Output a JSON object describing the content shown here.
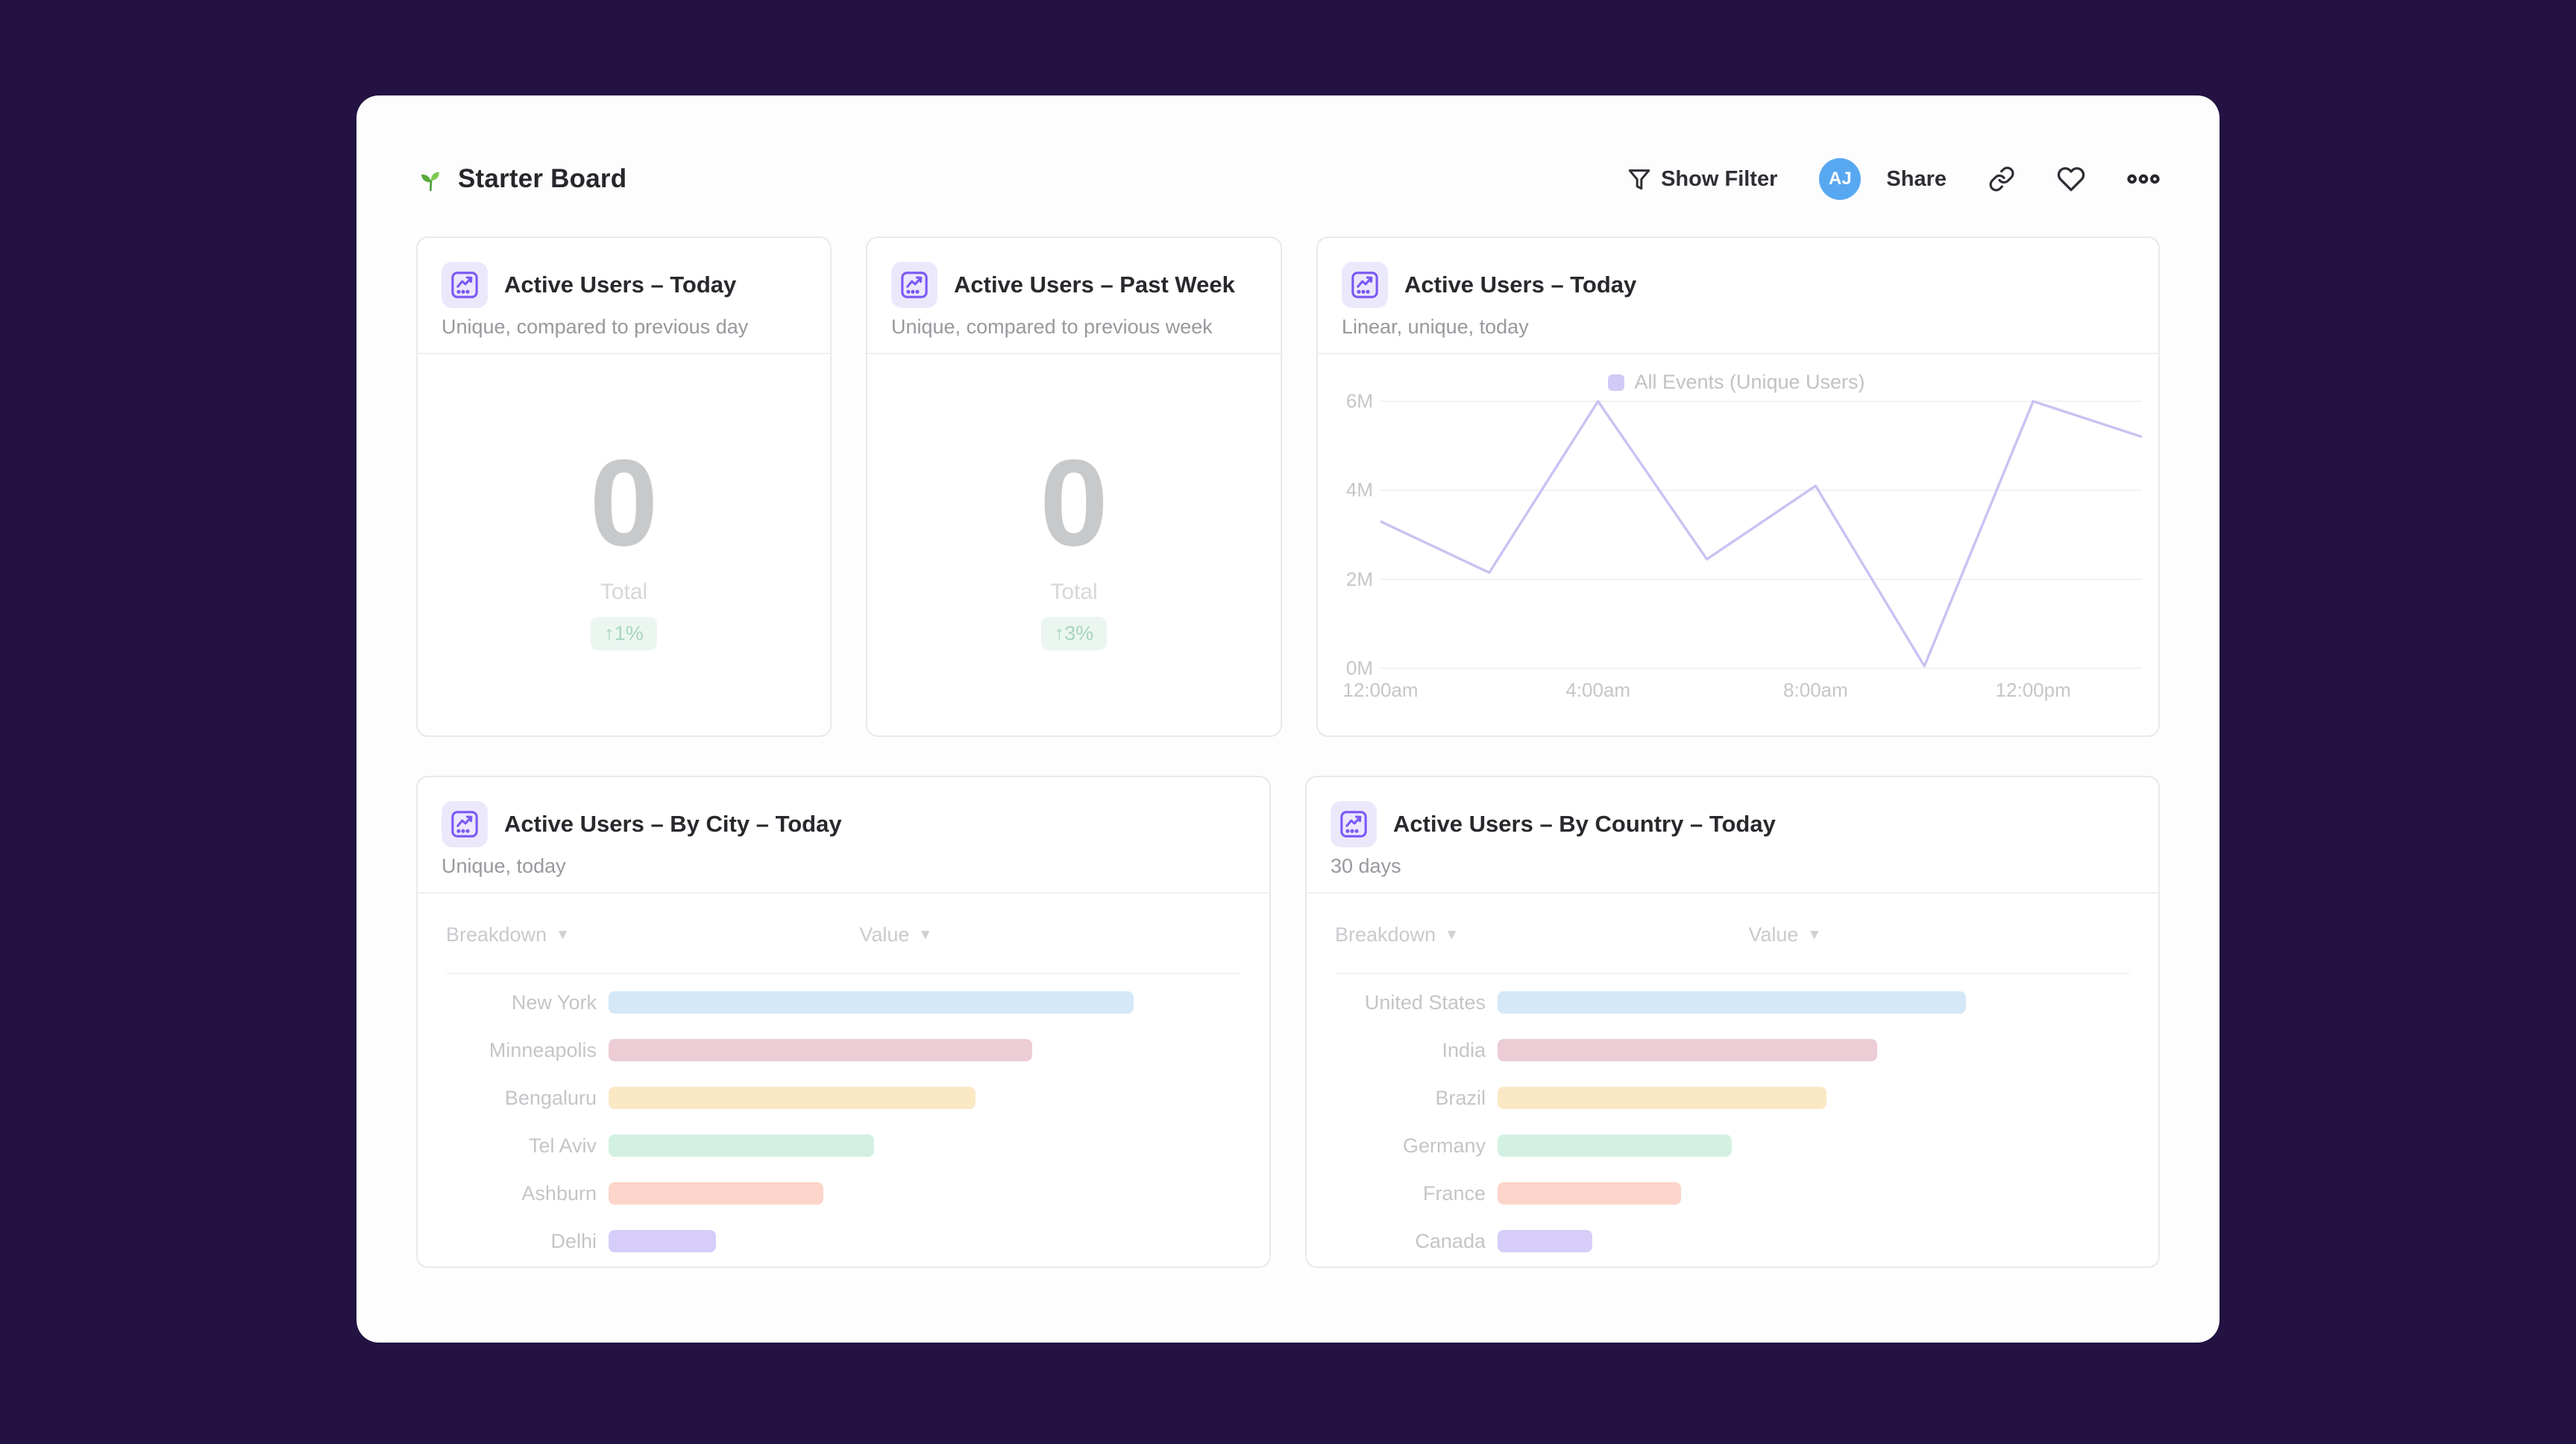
{
  "header": {
    "title": "Starter Board",
    "show_filter_label": "Show Filter",
    "avatar_initials": "AJ",
    "share_label": "Share"
  },
  "cards": {
    "kpi_today": {
      "title": "Active Users – Today",
      "subtitle": "Unique, compared to previous day",
      "value": "0",
      "value_label": "Total",
      "delta": "↑1%",
      "delta_color": "#a6d5bf",
      "delta_bg": "#ecf6f1"
    },
    "kpi_week": {
      "title": "Active Users – Past Week",
      "subtitle": "Unique, compared to previous week",
      "value": "0",
      "value_label": "Total",
      "delta": "↑3%",
      "delta_color": "#a6d5bf",
      "delta_bg": "#ecf6f1"
    },
    "line": {
      "title": "Active Users – Today",
      "subtitle": "Linear, unique, today",
      "legend": "All Events (Unique Users)"
    },
    "by_city": {
      "title": "Active Users – By City – Today",
      "subtitle": "Unique, today",
      "col_breakdown": "Breakdown",
      "col_value": "Value",
      "rows": [
        {
          "label": "New York",
          "value_pct": 83,
          "color": "#d4e8f8"
        },
        {
          "label": "Minneapolis",
          "value_pct": 67,
          "color": "#ecccd5"
        },
        {
          "label": "Bengaluru",
          "value_pct": 58,
          "color": "#fae8c5"
        },
        {
          "label": "Tel Aviv",
          "value_pct": 42,
          "color": "#d3f1e2"
        },
        {
          "label": "Ashburn",
          "value_pct": 34,
          "color": "#fdd5ca"
        },
        {
          "label": "Delhi",
          "value_pct": 17,
          "color": "#d6cef8"
        }
      ]
    },
    "by_country": {
      "title": "Active Users – By Country – Today",
      "subtitle": "30 days",
      "col_breakdown": "Breakdown",
      "col_value": "Value",
      "rows": [
        {
          "label": "United States",
          "value_pct": 74,
          "color": "#d4e8f8"
        },
        {
          "label": "India",
          "value_pct": 60,
          "color": "#ecccd5"
        },
        {
          "label": "Brazil",
          "value_pct": 52,
          "color": "#fae8c5"
        },
        {
          "label": "Germany",
          "value_pct": 37,
          "color": "#d3f1e2"
        },
        {
          "label": "France",
          "value_pct": 29,
          "color": "#fdd5ca"
        },
        {
          "label": "Canada",
          "value_pct": 15,
          "color": "#d6cef8"
        }
      ]
    }
  },
  "chart_data": {
    "type": "line",
    "title": "Active Users – Today",
    "x": [
      "12:00am",
      "2:00am",
      "4:00am",
      "6:00am",
      "8:00am",
      "10:00am",
      "12:00pm",
      "2:00pm"
    ],
    "series": [
      {
        "name": "All Events (Unique Users)",
        "values": [
          3.3,
          2.15,
          6.0,
          2.45,
          4.1,
          0.05,
          6.0,
          5.2
        ]
      }
    ],
    "x_tick_indices": [
      0,
      2,
      4,
      6
    ],
    "x_tick_labels": [
      "12:00am",
      "4:00am",
      "8:00am",
      "12:00pm"
    ],
    "y_ticks": [
      "0M",
      "2M",
      "4M",
      "6M"
    ],
    "ylim": [
      0,
      6
    ],
    "line_color": "#c8c3f2",
    "grid_color": "#f0f0f2",
    "legend_position": "top-center",
    "grid": "horizontal-only"
  },
  "colors": {
    "background": "#231242",
    "panel": "#fdfdfe",
    "accent_purple": "#7a58f5",
    "avatar_blue": "#58a8f1"
  }
}
